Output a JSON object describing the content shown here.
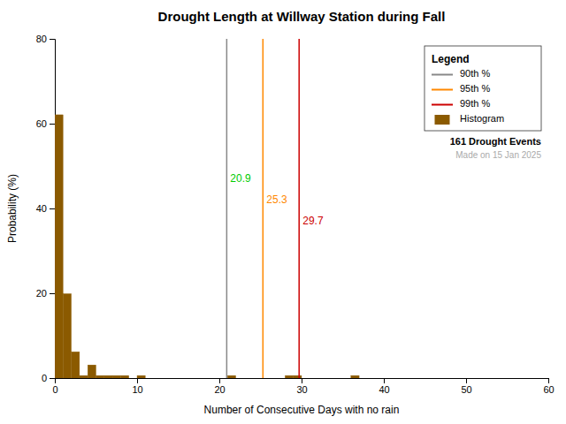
{
  "chart_data": {
    "type": "histogram",
    "title": "Drought Length at Willway Station during Fall",
    "x_label": "Number of Consecutive Days with no rain",
    "y_label": "Probability (%)",
    "xlim": [
      0,
      60
    ],
    "ylim": [
      0,
      80
    ],
    "xticks": [
      0,
      10,
      20,
      30,
      40,
      50,
      60
    ],
    "yticks": [
      0,
      20,
      40,
      60,
      80
    ],
    "grid": false,
    "legend": "upper right",
    "legend_title": "Legend",
    "bins": [
      0,
      1,
      2,
      3,
      4,
      5,
      6,
      7,
      8,
      9,
      10,
      11,
      12,
      13,
      14,
      15,
      16,
      17,
      18,
      19,
      20,
      21,
      22,
      23,
      24,
      25,
      26,
      27,
      28,
      29,
      30,
      31,
      32,
      33,
      34,
      35,
      36,
      37,
      38,
      39,
      40,
      41,
      42,
      43,
      44,
      45,
      46,
      47,
      48,
      49,
      50,
      51,
      52,
      53,
      54,
      55,
      56,
      57,
      58,
      59,
      60
    ],
    "series": [
      {
        "name": "Histogram",
        "color": "#8B5A00",
        "values": [
          62.1,
          19.9,
          6.2,
          0.6,
          3.1,
          0.6,
          0.6,
          0.6,
          0.6,
          0.0,
          0.6,
          0.0,
          0.0,
          0.0,
          0.0,
          0.0,
          0.0,
          0.0,
          0.0,
          0.0,
          0.0,
          0.6,
          0.0,
          0.0,
          0.0,
          0.0,
          0.0,
          0.0,
          0.6,
          0.6,
          0.0,
          0.0,
          0.0,
          0.0,
          0.0,
          0.0,
          0.6,
          0.0,
          0.0,
          0.0,
          0.0,
          0.0,
          0.0,
          0.0,
          0.0,
          0.0,
          0.0,
          0.0,
          0.0,
          0.0,
          0.0,
          0.0,
          0.0,
          0.0,
          0.0,
          0.0,
          0.0,
          0.0,
          0.0,
          0.0
        ]
      }
    ],
    "reference_lines": [
      {
        "name": "90th %",
        "x": 20.9,
        "color": "#888888",
        "label_color": "#00cc00",
        "label_y": 48
      },
      {
        "name": "95th %",
        "x": 25.3,
        "color": "#ff8800",
        "label_color": "#ff8800",
        "label_y": 43
      },
      {
        "name": "99th %",
        "x": 29.7,
        "color": "#cc0000",
        "label_color": "#cc0000",
        "label_y": 38
      }
    ],
    "annotations": [
      {
        "text": "161 Drought Events",
        "color": "#000000"
      },
      {
        "text": "Made on 15 Jan 2025",
        "color": "#aaaaaa"
      }
    ]
  }
}
